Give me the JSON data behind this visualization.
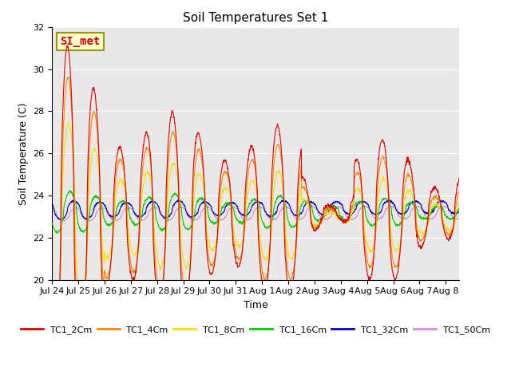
{
  "title": "Soil Temperatures Set 1",
  "xlabel": "Time",
  "ylabel": "Soil Temperature (C)",
  "ylim": [
    20,
    32
  ],
  "yticks": [
    20,
    22,
    24,
    26,
    28,
    30,
    32
  ],
  "annotation_text": "SI_met",
  "annotation_color": "#cc0000",
  "annotation_bg": "#ffffcc",
  "annotation_edgecolor": "#999900",
  "bg_color": "#e8e8e8",
  "series_colors": {
    "TC1_2Cm": "#dd0000",
    "TC1_4Cm": "#ff8800",
    "TC1_8Cm": "#ffdd00",
    "TC1_16Cm": "#00cc00",
    "TC1_32Cm": "#0000cc",
    "TC1_50Cm": "#dd88dd"
  },
  "xtick_labels": [
    "Jul 24",
    "Jul 25",
    "Jul 26",
    "Jul 27",
    "Jul 28",
    "Jul 29",
    "Jul 30",
    "Jul 31",
    "Aug 1",
    "Aug 2",
    "Aug 3",
    "Aug 4",
    "Aug 5",
    "Aug 6",
    "Aug 7",
    "Aug 8"
  ]
}
